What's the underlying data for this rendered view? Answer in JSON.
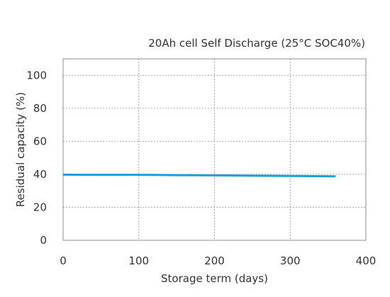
{
  "chart_data": {
    "type": "line",
    "title": "20Ah cell Self Discharge (25°C SOC40%)",
    "xlabel": "Storage term (days)",
    "ylabel": "Residual capacity (%)",
    "xlim": [
      0,
      400
    ],
    "ylim": [
      0,
      110
    ],
    "xticks": [
      0,
      100,
      200,
      300,
      400
    ],
    "yticks": [
      0,
      20,
      40,
      60,
      80,
      100
    ],
    "grid": true,
    "series": [
      {
        "color": "#1a9fdb",
        "x": [
          0,
          30,
          60,
          90,
          120,
          150,
          180,
          210,
          240,
          270,
          300,
          330,
          360
        ],
        "y": [
          39.8,
          39.7,
          39.7,
          39.7,
          39.6,
          39.5,
          39.4,
          39.3,
          39.2,
          39.1,
          39.0,
          38.9,
          38.8
        ]
      }
    ]
  }
}
